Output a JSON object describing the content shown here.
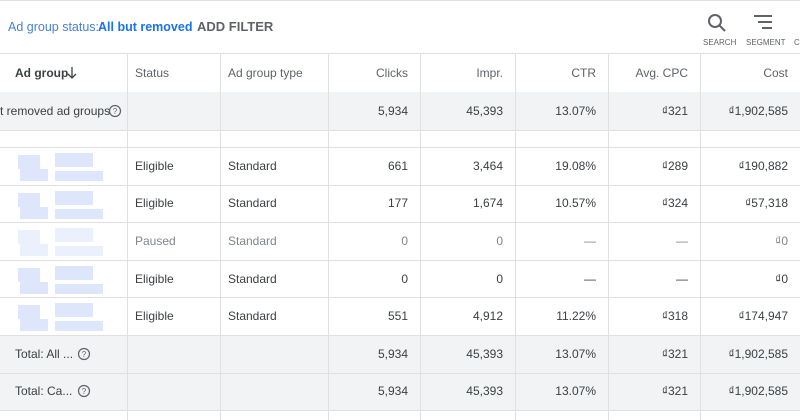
{
  "filter_bar": {
    "label": "Ad group status:",
    "value": "All but removed",
    "add_filter": "ADD FILTER",
    "tools": [
      "SEARCH",
      "SEGMENT",
      "C"
    ]
  },
  "table": {
    "columns": [
      "Ad group",
      "Status",
      "Ad group type",
      "Clicks",
      "Impr.",
      "CTR",
      "Avg. CPC",
      "Cost"
    ],
    "summary_row": {
      "label": "t removed ad groups",
      "cells": [
        "5,934",
        "45,393",
        "13.07%",
        "₫321",
        "₫1,902,585"
      ]
    },
    "rows": [
      [
        "Eligible",
        "Standard",
        "661",
        "3,464",
        "19.08%",
        "₫289",
        "₫190,882"
      ],
      [
        "Eligible",
        "Standard",
        "177",
        "1,674",
        "10.57%",
        "₫324",
        "₫57,318"
      ],
      [
        "Paused",
        "Standard",
        "0",
        "0",
        "—",
        "—",
        "₫0"
      ],
      [
        "Eligible",
        "Standard",
        "0",
        "0",
        "—",
        "—",
        "₫0"
      ],
      [
        "Eligible",
        "Standard",
        "551",
        "4,912",
        "11.22%",
        "₫318",
        "₫174,947"
      ]
    ],
    "totals": [
      {
        "label": "Total: All ...",
        "cells": [
          "5,934",
          "45,393",
          "13.07%",
          "₫321",
          "₫1,902,585"
        ]
      },
      {
        "label": "Total: Ca...",
        "cells": [
          "5,934",
          "45,393",
          "13.07%",
          "₫321",
          "₫1,902,585"
        ]
      }
    ]
  }
}
